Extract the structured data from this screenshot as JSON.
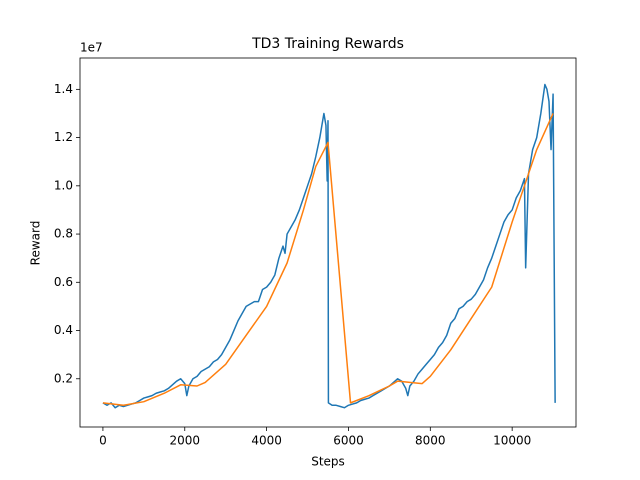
{
  "chart_data": {
    "type": "line",
    "title": "TD3 Training Rewards",
    "xlabel": "Steps",
    "ylabel": "Reward",
    "y_offset_label": "1e7",
    "xlim": [
      -560,
      11560
    ],
    "ylim": [
      0.0,
      1.53
    ],
    "xticks": [
      0,
      2000,
      4000,
      6000,
      8000,
      10000
    ],
    "yticks": [
      0.2,
      0.4,
      0.6,
      0.8,
      {
        "value": 1,
        "label": "1.0"
      },
      1.2,
      1.4
    ],
    "series": [
      {
        "color": "#1f77b4",
        "x": [
          0,
          100,
          200,
          300,
          400,
          500,
          600,
          700,
          800,
          900,
          1000,
          1100,
          1200,
          1300,
          1400,
          1500,
          1600,
          1700,
          1800,
          1900,
          2000,
          2050,
          2100,
          2200,
          2300,
          2400,
          2500,
          2600,
          2700,
          2800,
          2900,
          3000,
          3100,
          3200,
          3300,
          3400,
          3500,
          3600,
          3700,
          3800,
          3900,
          4000,
          4100,
          4200,
          4300,
          4400,
          4450,
          4500,
          4600,
          4700,
          4800,
          4900,
          5000,
          5100,
          5200,
          5300,
          5350,
          5400,
          5450,
          5480,
          5500,
          5510,
          5600,
          5700,
          5800,
          5900,
          6000,
          6100,
          6200,
          6300,
          6400,
          6500,
          6600,
          6700,
          6800,
          6900,
          7000,
          7100,
          7200,
          7300,
          7400,
          7450,
          7500,
          7600,
          7700,
          7800,
          7900,
          8000,
          8100,
          8200,
          8300,
          8400,
          8500,
          8600,
          8700,
          8800,
          8900,
          9000,
          9100,
          9200,
          9300,
          9400,
          9500,
          9600,
          9700,
          9800,
          9900,
          10000,
          10100,
          10200,
          10300,
          10330,
          10400,
          10500,
          10600,
          10700,
          10800,
          10850,
          10900,
          10950,
          11000,
          11050
        ],
        "values": [
          0.1,
          0.09,
          0.1,
          0.08,
          0.09,
          0.085,
          0.09,
          0.095,
          0.1,
          0.11,
          0.12,
          0.125,
          0.13,
          0.14,
          0.145,
          0.15,
          0.16,
          0.175,
          0.19,
          0.2,
          0.18,
          0.13,
          0.17,
          0.2,
          0.21,
          0.23,
          0.24,
          0.25,
          0.27,
          0.28,
          0.3,
          0.33,
          0.36,
          0.4,
          0.44,
          0.47,
          0.5,
          0.51,
          0.52,
          0.52,
          0.57,
          0.58,
          0.6,
          0.63,
          0.7,
          0.75,
          0.72,
          0.8,
          0.83,
          0.86,
          0.9,
          0.95,
          1.0,
          1.05,
          1.12,
          1.2,
          1.25,
          1.3,
          1.25,
          1.02,
          1.27,
          0.1,
          0.09,
          0.09,
          0.085,
          0.08,
          0.09,
          0.095,
          0.1,
          0.11,
          0.115,
          0.12,
          0.13,
          0.14,
          0.15,
          0.16,
          0.17,
          0.185,
          0.2,
          0.19,
          0.16,
          0.13,
          0.17,
          0.19,
          0.22,
          0.24,
          0.26,
          0.28,
          0.3,
          0.33,
          0.35,
          0.38,
          0.43,
          0.45,
          0.49,
          0.5,
          0.52,
          0.53,
          0.55,
          0.58,
          0.61,
          0.66,
          0.7,
          0.75,
          0.8,
          0.85,
          0.88,
          0.9,
          0.95,
          0.98,
          1.03,
          0.66,
          1.05,
          1.15,
          1.2,
          1.3,
          1.42,
          1.4,
          1.35,
          1.15,
          1.38,
          0.1
        ]
      },
      {
        "color": "#ff7f0e",
        "x": [
          0,
          500,
          1000,
          1500,
          1900,
          2300,
          2500,
          3000,
          3500,
          4000,
          4500,
          4900,
          5200,
          5500,
          6050,
          6500,
          7000,
          7200,
          7800,
          8000,
          8500,
          9000,
          9500,
          10000,
          10300,
          10600,
          11000
        ],
        "values": [
          0.1,
          0.09,
          0.105,
          0.14,
          0.175,
          0.17,
          0.185,
          0.26,
          0.38,
          0.5,
          0.68,
          0.9,
          1.08,
          1.18,
          0.1,
          0.13,
          0.17,
          0.19,
          0.18,
          0.21,
          0.32,
          0.45,
          0.58,
          0.85,
          1.0,
          1.15,
          1.3
        ]
      }
    ]
  }
}
